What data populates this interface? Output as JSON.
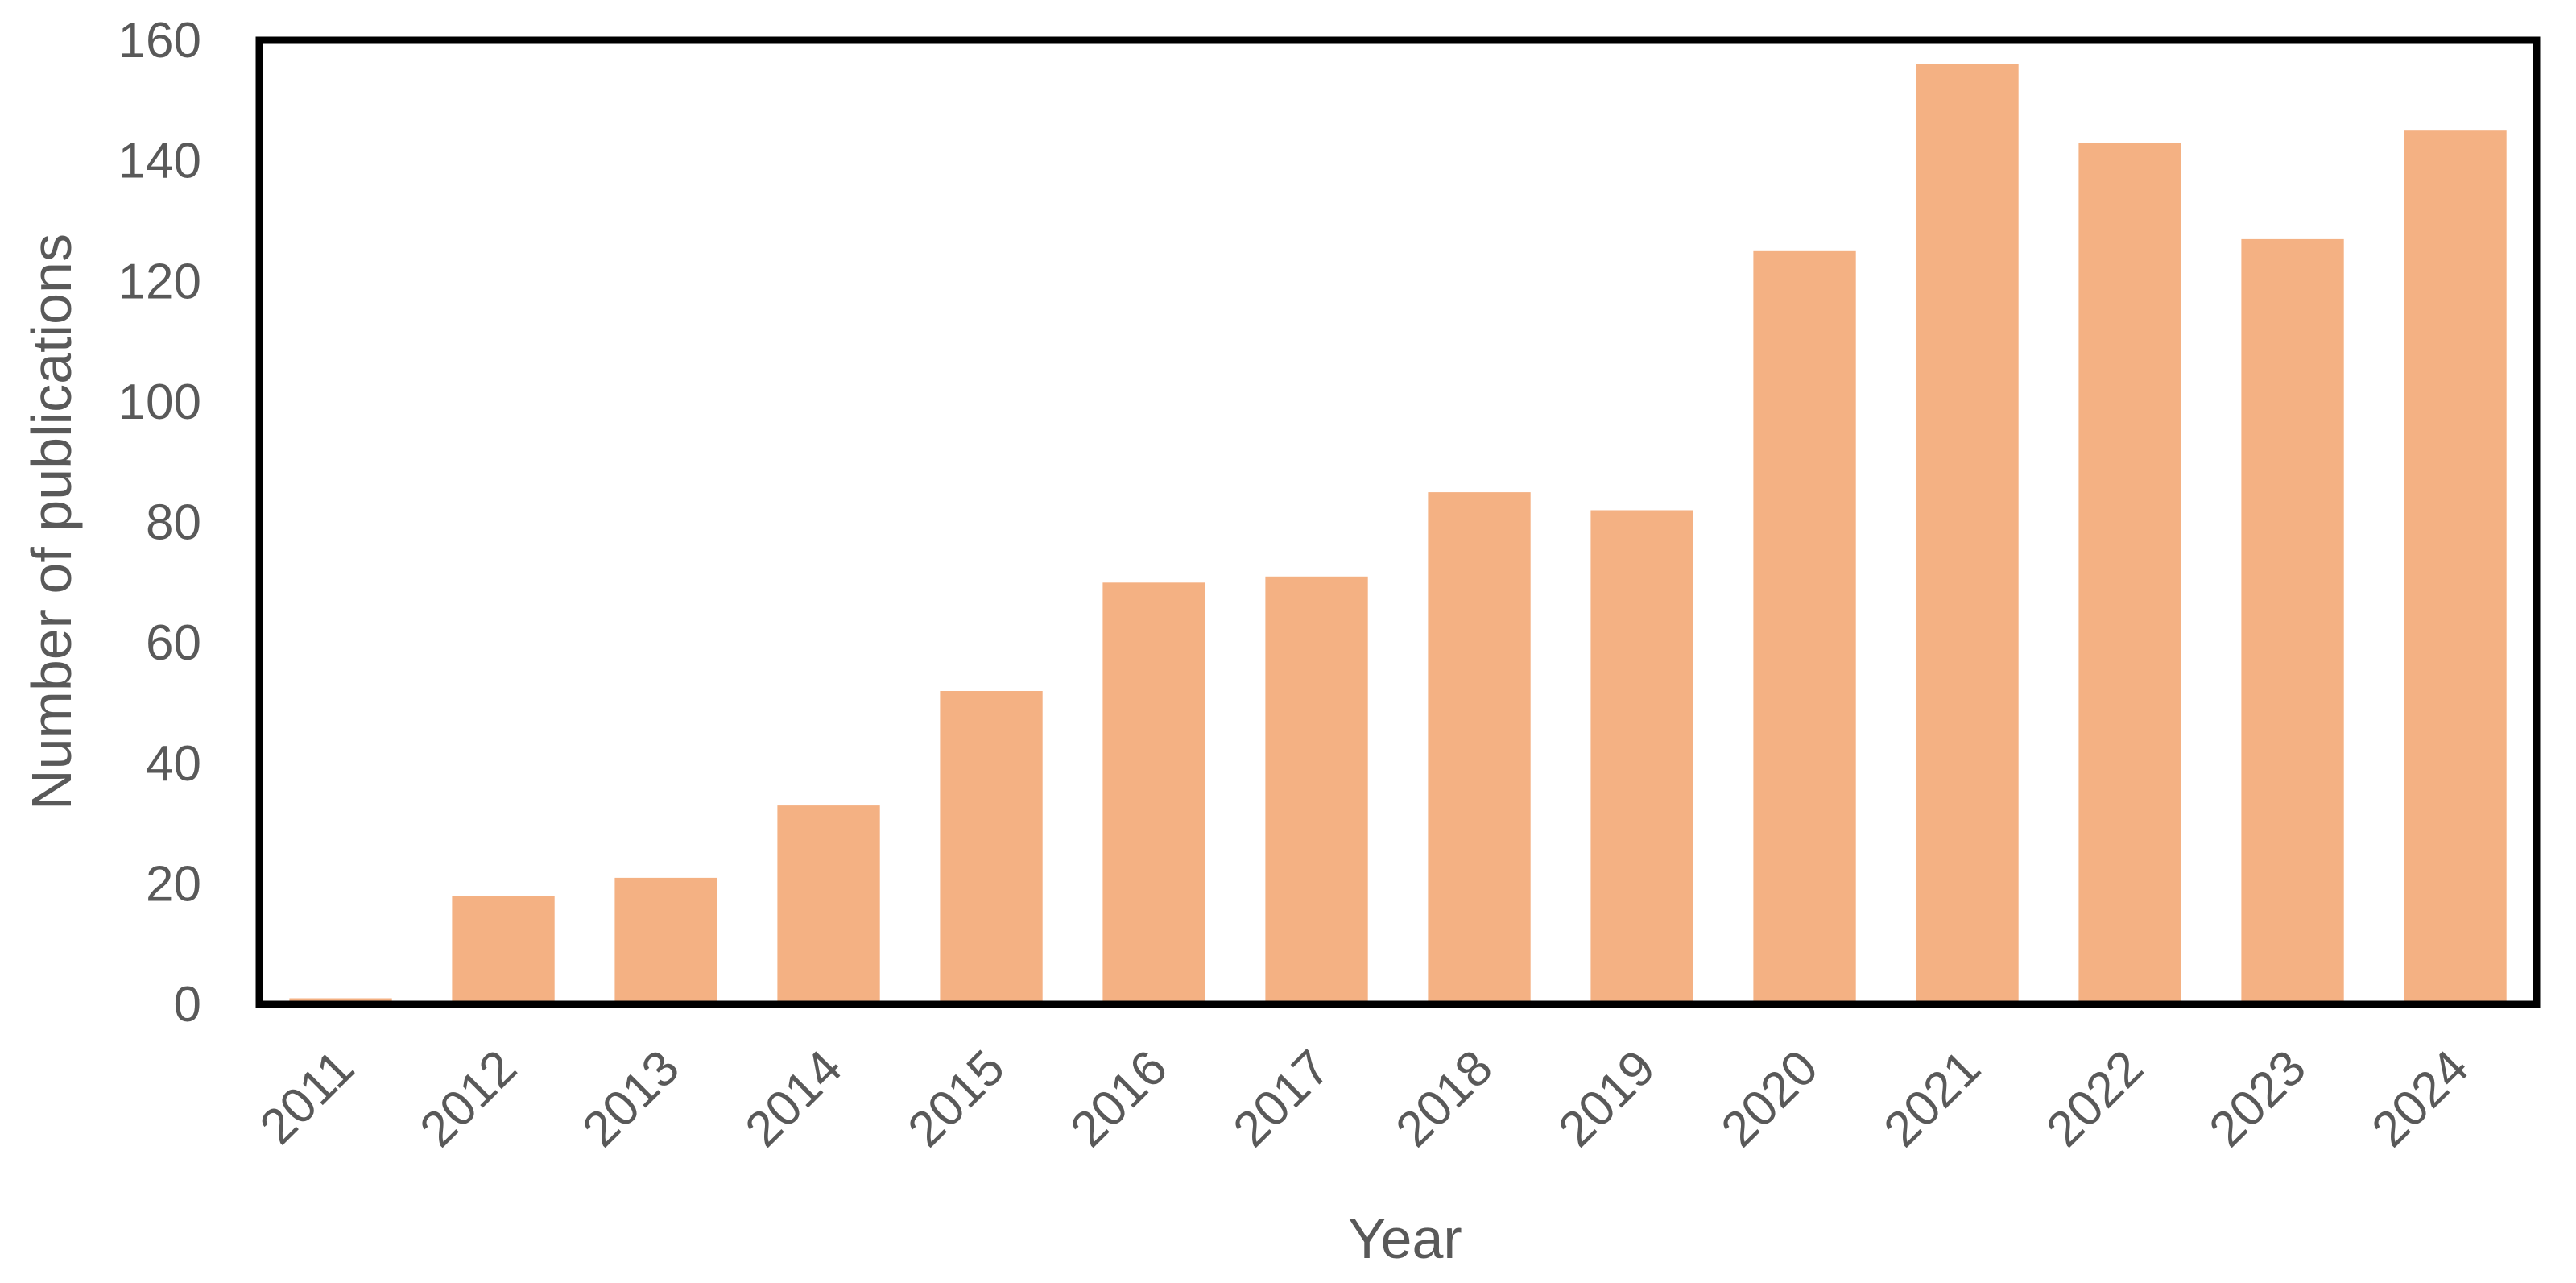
{
  "chart_data": {
    "type": "bar",
    "categories": [
      "2011",
      "2012",
      "2013",
      "2014",
      "2015",
      "2016",
      "2017",
      "2018",
      "2019",
      "2020",
      "2021",
      "2022",
      "2023",
      "2024"
    ],
    "values": [
      1,
      18,
      21,
      33,
      52,
      70,
      71,
      85,
      82,
      125,
      156,
      143,
      127,
      145
    ],
    "xlabel": "Year",
    "ylabel": "Number of publications",
    "ylim": [
      0,
      160
    ],
    "yticks": [
      "0",
      "20",
      "40",
      "60",
      "80",
      "100",
      "120",
      "140",
      "160"
    ],
    "grid": false,
    "legend": "none",
    "bar_color": "#F4B183",
    "frame_color": "#000000",
    "text_color": "#595959"
  }
}
